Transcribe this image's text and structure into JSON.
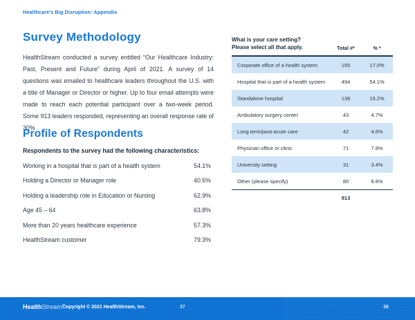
{
  "header": {
    "title": "Healthcare's Big Disruption: Appendix"
  },
  "methodology": {
    "title": "Survey Methodology",
    "body": "HealthStream conducted a survey entitled “Our Healthcare Industry: Past, Present and Future” during April of 2021. A survey of 14 questions was emailed to healthcare leaders throughout the U.S. with a title of Manager or Director or higher. Up to four email attempts were made to reach each potential participant over a two-week period. Some 913 leaders responded, representing an overall response rate of 30%"
  },
  "profile": {
    "title": "Profile of Respondents",
    "intro": "Respondents to the survey had the following characteristics:",
    "characteristics": [
      {
        "label": "Working in a hospital that is part of a health system",
        "value": "54.1%"
      },
      {
        "label": "Holding a Director or Manager role",
        "value": "40.6%"
      },
      {
        "label": "Holding a leadership role in Education or Nursing",
        "value": "62.9%"
      },
      {
        "label": "Age 45 – 64",
        "value": "63.8%"
      },
      {
        "label": "More than 20 years healthcare experience",
        "value": "57.3%"
      },
      {
        "label": "HealthStream customer",
        "value": "79.3%"
      }
    ]
  },
  "table": {
    "question_line1": "What is your care setting?",
    "question_line2": "Please select all that apply.",
    "col_total": "Total #*",
    "col_pct": "% *",
    "rows": [
      {
        "label": "Corporate office of a health system",
        "total": "155",
        "pct": "17.0%"
      },
      {
        "label": "Hospital that is part of a health system",
        "total": "494",
        "pct": "54.1%"
      },
      {
        "label": "Standalone hospital",
        "total": "139",
        "pct": "15.2%"
      },
      {
        "label": "Ambulatory surgery center",
        "total": "43",
        "pct": "4.7%"
      },
      {
        "label": "Long term/post-acute care",
        "total": "42",
        "pct": "4.6%"
      },
      {
        "label": "Physician office or clinic",
        "total": "71",
        "pct": "7.8%"
      },
      {
        "label": "University setting",
        "total": "31",
        "pct": "3.4%"
      },
      {
        "label": "Other (please specify)",
        "total": "80",
        "pct": "8.8%"
      }
    ],
    "grand_total": "913"
  },
  "footer": {
    "logo_bold": "Health",
    "logo_light": "Stream",
    "logo_tm": "™",
    "copyright": "Copyright © 2021 HealthStream, Inc.",
    "page_left": "37",
    "page_right": "38"
  },
  "colors": {
    "accent_blue": "#1878d8",
    "footer_blue": "#1173d3",
    "row_highlight": "#cfe4f6",
    "rule_navy": "#24394a",
    "body_text": "#2b3a45"
  }
}
